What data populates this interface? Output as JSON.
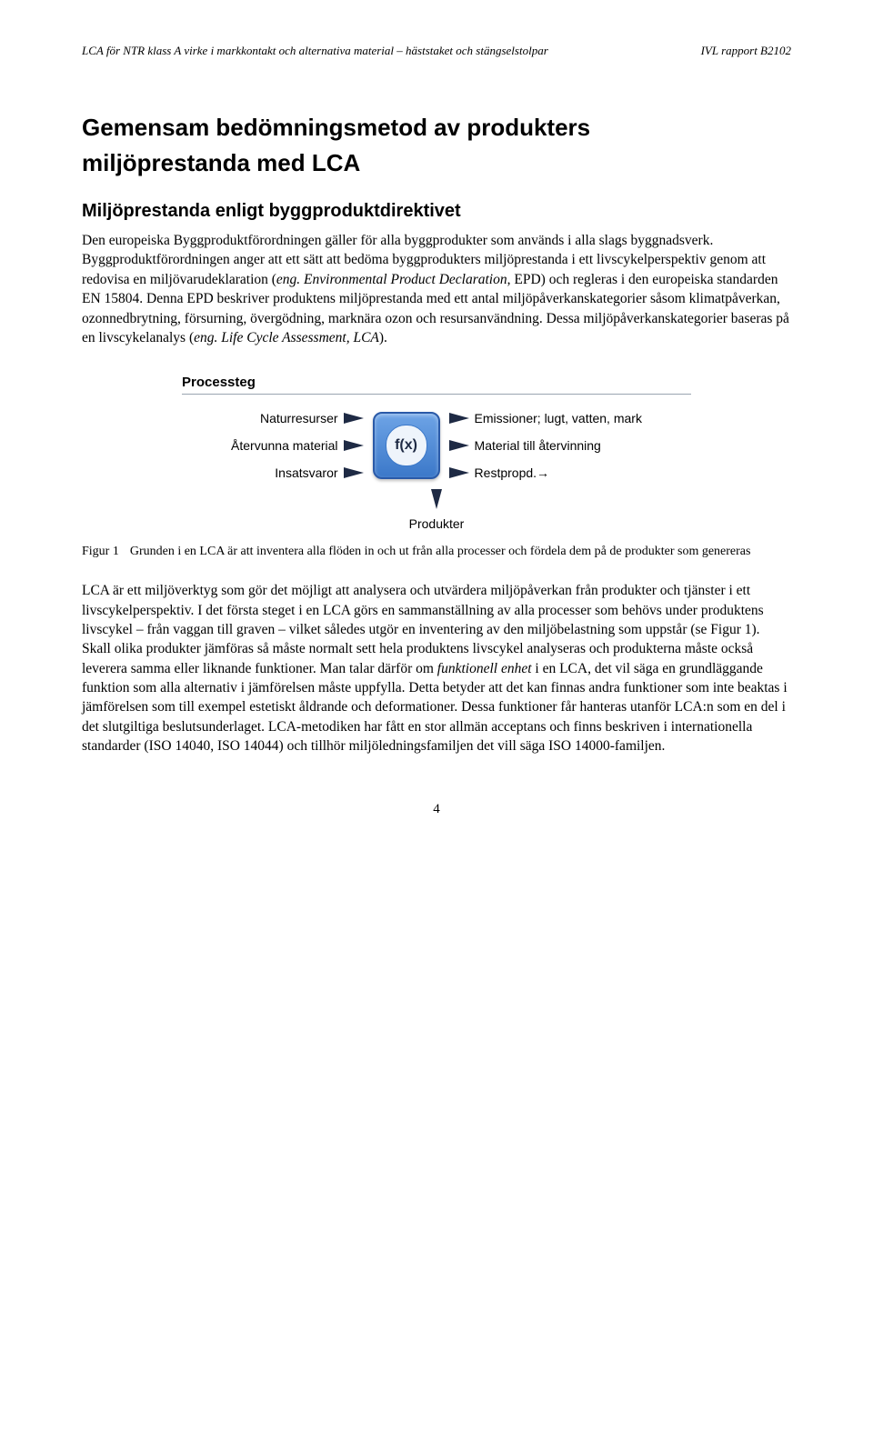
{
  "header": {
    "left": "LCA för NTR klass A virke i markkontakt och alternativa material – häststaket och stängselstolpar",
    "right": "IVL rapport B2102"
  },
  "title_line1": "Gemensam bedömningsmetod av produkters",
  "title_line2": "miljöprestanda med LCA",
  "subtitle": "Miljöprestanda enligt byggproduktdirektivet",
  "paragraph1_html": "Den europeiska Byggproduktförordningen gäller för alla byggprodukter som används i alla slags byggnadsverk. Byggproduktförordningen anger att ett sätt att bedöma byggprodukters miljöprestanda i ett livscykelperspektiv genom att redovisa en miljövarudeklaration (<span class=\"italic\">eng. Environmental Product Declaration</span>, EPD) och regleras i den europeiska standarden EN 15804. Denna EPD beskriver produktens miljöprestanda med ett antal miljöpåverkanskategorier såsom klimatpåverkan, ozonnedbrytning, försurning, övergödning, marknära ozon och resursanvändning. Dessa miljöpåverkanskategorier baseras på en livscykelanalys (<span class=\"italic\">eng. Life Cycle Assessment, LCA</span>).",
  "diagram": {
    "title": "Processteg",
    "inputs": [
      "Naturresurser",
      "Återvunna material",
      "Insatsvaror"
    ],
    "outputs": [
      "Emissioner; lugt, vatten, mark",
      "Material till återvinning",
      "Restpropd.→"
    ],
    "center_label": "f(x)",
    "down_label": "Produkter",
    "box_gradient_top": "#6ea4e6",
    "box_gradient_bottom": "#3b78c9",
    "box_border": "#2a5aa8",
    "arrow_color": "#1e2a44"
  },
  "figure_caption": {
    "label": "Figur 1",
    "text": "Grunden i en LCA är att inventera alla flöden in och ut från alla processer och fördela dem på de produkter som genereras"
  },
  "paragraph2_html": "LCA är ett miljöverktyg som gör det möjligt att analysera och utvärdera miljöpåverkan från produkter och tjänster i ett livscykelperspektiv. I det första steget i en LCA görs en sammanställning av alla processer som behövs under produktens livscykel – från vaggan till graven – vilket således utgör en inventering av den miljöbelastning som uppstår (se Figur 1). Skall olika produkter jämföras så måste normalt sett hela produktens livscykel analyseras och produkterna måste också leverera samma eller liknande funktioner. Man talar därför om <span class=\"italic\">funktionell enhet</span> i en LCA, det vil säga en grundläggande funktion som alla alternativ i jämförelsen måste uppfylla. Detta betyder att det kan finnas andra funktioner som inte beaktas i jämförelsen som till exempel estetiskt åldrande och deformationer. Dessa funktioner får hanteras utanför LCA:n som en del i det slutgiltiga beslutsunderlaget. LCA-metodiken har fått en stor allmän acceptans och finns beskriven i internationella standarder (ISO 14040, ISO 14044) och tillhör miljöledningsfamiljen det vill säga ISO 14000-familjen.",
  "page_number": "4"
}
